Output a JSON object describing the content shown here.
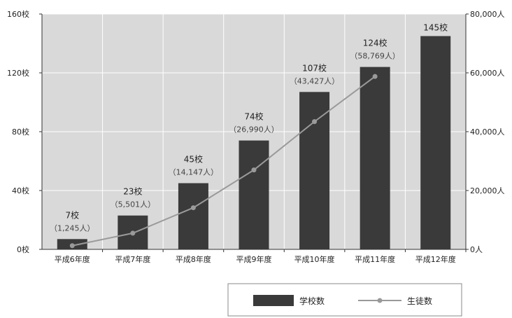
{
  "chart_data": {
    "type": "bar",
    "title": "",
    "categories": [
      "平成6年度",
      "平成7年度",
      "平成8年度",
      "平成9年度",
      "平成10年度",
      "平成11年度",
      "平成12年度"
    ],
    "series": [
      {
        "name": "学校数",
        "type": "bar",
        "axis": "left",
        "values": [
          7,
          23,
          45,
          74,
          107,
          124,
          145
        ],
        "color": "#3a3a3a"
      },
      {
        "name": "生徒数",
        "type": "line",
        "axis": "right",
        "values": [
          1245,
          5501,
          14147,
          26990,
          43427,
          58769,
          null
        ],
        "color": "#9a9a9a"
      }
    ],
    "bar_labels": [
      "7校",
      "23校",
      "45校",
      "74校",
      "107校",
      "124校",
      "145校"
    ],
    "line_labels": [
      "（1,245人）",
      "（5,501人）",
      "（14,147人）",
      "（26,990人）",
      "（43,427人）",
      "（58,769人）",
      ""
    ],
    "y_left": {
      "range": [
        0,
        160
      ],
      "ticks": [
        "0校",
        "40校",
        "80校",
        "120校",
        "160校"
      ]
    },
    "y_right": {
      "range": [
        0,
        80000
      ],
      "ticks": [
        "0人",
        "20,000人",
        "40,000人",
        "60,000人",
        "80,000人"
      ]
    },
    "grid": true,
    "plot_background": "#d9d9d9",
    "legend": {
      "position": "bottom-right",
      "bar_label": "学校数",
      "line_label": "生徒数"
    }
  }
}
